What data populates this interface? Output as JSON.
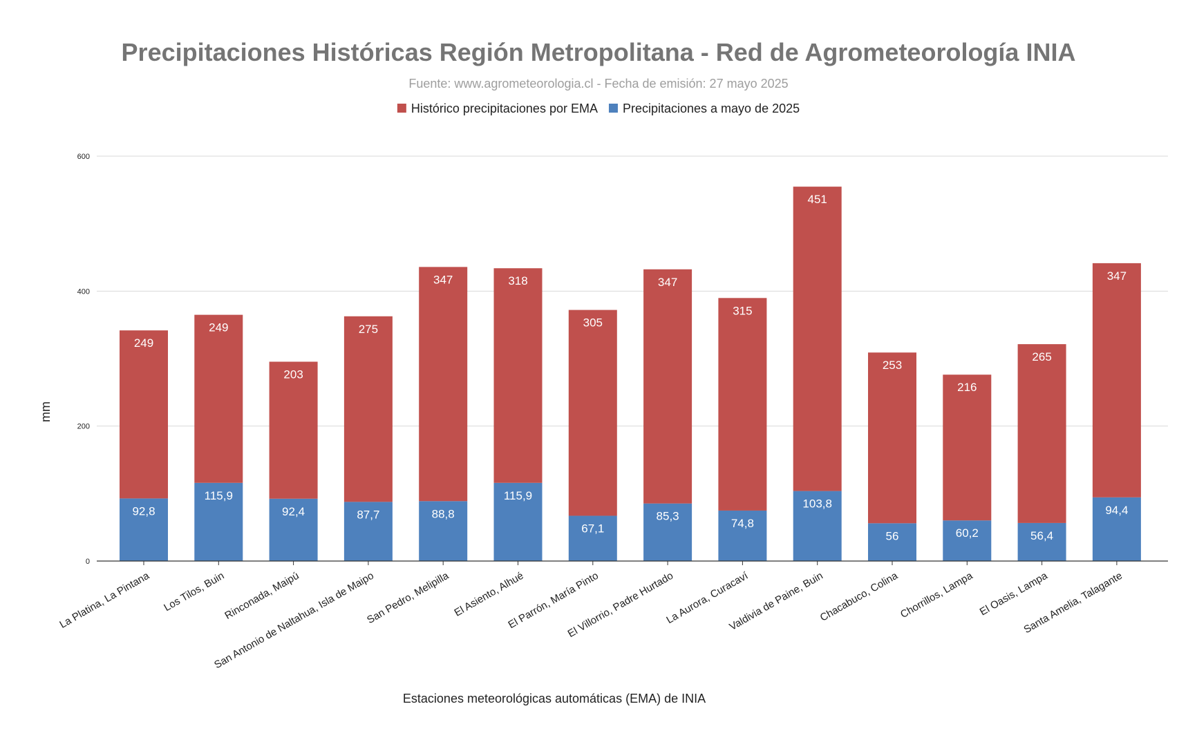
{
  "chart_data": {
    "type": "bar",
    "stacked": true,
    "title": "Precipitaciones Históricas Región Metropolitana - Red de Agrometeorología INIA",
    "subtitle": "Fuente: www.agrometeorologia.cl - Fecha de emisión: 27 mayo 2025",
    "xlabel": "Estaciones meteorológicas automáticas (EMA) de INIA",
    "ylabel": "mm",
    "ylim": [
      0,
      600
    ],
    "yticks": [
      0,
      200,
      400,
      600
    ],
    "grid": true,
    "legend_position": "top",
    "categories": [
      "La Platina, La Pintana",
      "Los Tilos, Buin",
      "Rinconada, Maipú",
      "San Antonio de Naltahua, Isla de Maipo",
      "San Pedro, Melipilla",
      "El Asiento, Alhué",
      "El Parrón, María Pinto",
      "El Villorrio, Padre Hurtado",
      "La Aurora, Curacaví",
      "Valdivia de Paine, Buin",
      "Chacabuco, Colina",
      "Chorrillos, Lampa",
      "El Oasis, Lampa",
      "Santa Amelia, Talagante"
    ],
    "series": [
      {
        "name": "Precipitaciones a mayo de 2025",
        "color": "#4e81bd",
        "values": [
          92.8,
          115.9,
          92.4,
          87.7,
          88.8,
          115.9,
          67.1,
          85.3,
          74.8,
          103.8,
          56,
          60.2,
          56.4,
          94.4
        ],
        "labels": [
          "92,8",
          "115,9",
          "92,4",
          "87,7",
          "88,8",
          "115,9",
          "67,1",
          "85,3",
          "74,8",
          "103,8",
          "56",
          "60,2",
          "56,4",
          "94,4"
        ]
      },
      {
        "name": "Histórico precipitaciones por EMA",
        "color": "#c0504d",
        "values": [
          249,
          249,
          203,
          275,
          347,
          318,
          305,
          347,
          315,
          451,
          253,
          216,
          265,
          347
        ],
        "labels": [
          "249",
          "249",
          "203",
          "275",
          "347",
          "318",
          "305",
          "347",
          "315",
          "451",
          "253",
          "216",
          "265",
          "347"
        ]
      }
    ],
    "legend_order": [
      "Histórico precipitaciones por EMA",
      "Precipitaciones a mayo de 2025"
    ]
  }
}
